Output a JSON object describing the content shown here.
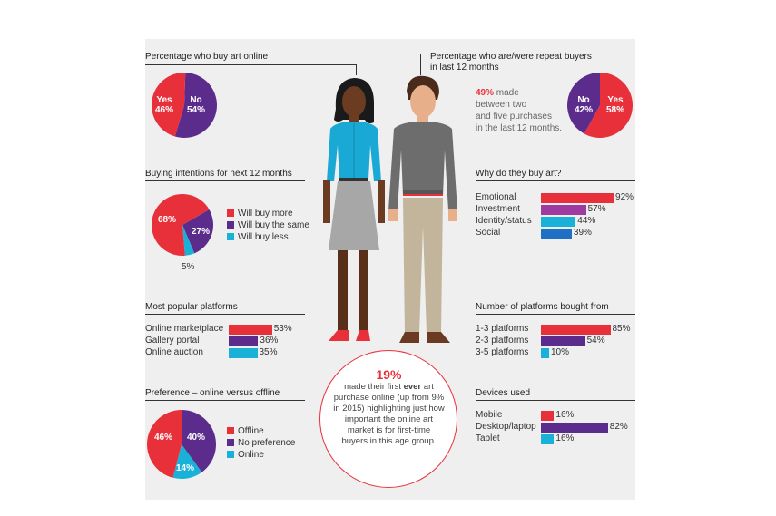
{
  "colors": {
    "red": "#e8303a",
    "purple": "#5b2c8c",
    "cyan": "#19b1d8",
    "blue": "#1f6fc4",
    "magenta": "#9e3aa0"
  },
  "online": {
    "title": "Percentage who buy art online",
    "yes_label": "Yes",
    "yes_value": "46%",
    "no_label": "No",
    "no_value": "54%"
  },
  "repeat": {
    "title_line1": "Percentage who are/were repeat buyers",
    "title_line2": "in last 12 months",
    "highlight": "49%",
    "text_line1": " made",
    "text_line2": "between two",
    "text_line3": "and five purchases",
    "text_line4": "in the last 12 months.",
    "no_label": "No",
    "no_value": "42%",
    "yes_label": "Yes",
    "yes_value": "58%"
  },
  "intentions": {
    "title": "Buying intentions for next 12 months",
    "more_value": "68%",
    "same_value": "27%",
    "less_value": "5%",
    "legend": [
      "Will buy more",
      "Will buy the same",
      "Will buy less"
    ]
  },
  "why": {
    "title": "Why do they buy art?"
  },
  "platforms": {
    "title": "Most popular platforms"
  },
  "num_platforms": {
    "title": "Number of platforms bought from"
  },
  "preference": {
    "title": "Preference – online versus offline",
    "offline_value": "46%",
    "nopref_value": "40%",
    "online_value": "14%",
    "legend": [
      "Offline",
      "No preference",
      "Online"
    ]
  },
  "devices": {
    "title": "Devices used"
  },
  "callout": {
    "big": "19%",
    "line1": "made their first ",
    "bold": "ever",
    "line1b": " art",
    "line2": "purchase online (up from 9%",
    "line3": "in 2015) highlighting just how",
    "line4": "important the online art",
    "line5": "market is for first-time",
    "line6": "buyers in this age group."
  },
  "chart_data": [
    {
      "type": "pie",
      "title": "Percentage who buy art online",
      "labels": [
        "Yes",
        "No"
      ],
      "values": [
        46,
        54
      ]
    },
    {
      "type": "pie",
      "title": "Percentage who are/were repeat buyers in last 12 months",
      "labels": [
        "No",
        "Yes"
      ],
      "values": [
        42,
        58
      ]
    },
    {
      "type": "pie",
      "title": "Buying intentions for next 12 months",
      "labels": [
        "Will buy more",
        "Will buy the same",
        "Will buy less"
      ],
      "values": [
        68,
        27,
        5
      ]
    },
    {
      "type": "bar",
      "title": "Why do they buy art?",
      "categories": [
        "Emotional",
        "Investment",
        "Identity/status",
        "Social"
      ],
      "values": [
        92,
        57,
        44,
        39
      ],
      "xlim": [
        0,
        100
      ]
    },
    {
      "type": "bar",
      "title": "Most popular platforms",
      "categories": [
        "Online marketplace",
        "Gallery portal",
        "Online auction"
      ],
      "values": [
        53,
        36,
        35
      ],
      "xlim": [
        0,
        100
      ]
    },
    {
      "type": "bar",
      "title": "Number of platforms bought from",
      "categories": [
        "1-3 platforms",
        "2-3 platforms",
        "3-5 platforms"
      ],
      "values": [
        85,
        54,
        10
      ],
      "xlim": [
        0,
        100
      ]
    },
    {
      "type": "pie",
      "title": "Preference – online versus offline",
      "labels": [
        "Offline",
        "No preference",
        "Online"
      ],
      "values": [
        46,
        40,
        14
      ]
    },
    {
      "type": "bar",
      "title": "Devices used",
      "categories": [
        "Mobile",
        "Desktop/laptop",
        "Tablet"
      ],
      "values": [
        16,
        82,
        16
      ],
      "xlim": [
        0,
        100
      ]
    }
  ]
}
